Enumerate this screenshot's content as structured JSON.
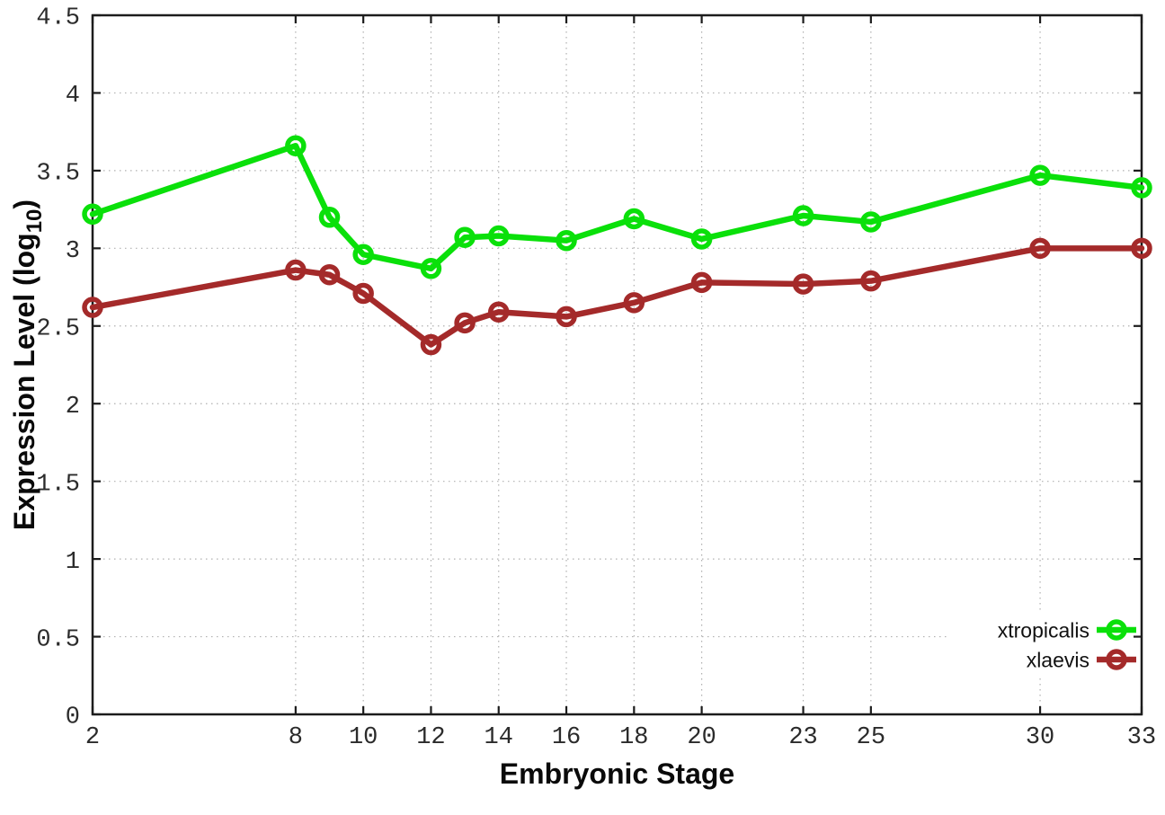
{
  "chart_data": {
    "type": "line",
    "title": "",
    "xlabel": "Embryonic Stage",
    "ylabel": "Expression Level (log10)",
    "ylabel_parts": {
      "base": "Expression Level (log",
      "sub": "10",
      "close": ")"
    },
    "xlim": [
      2,
      33
    ],
    "ylim": [
      0,
      4.5
    ],
    "grid": true,
    "grid_style": "dotted",
    "legend_position": "bottom-right",
    "marker": "open-circle",
    "xticks": [
      2,
      8,
      10,
      12,
      14,
      16,
      18,
      20,
      23,
      25,
      30,
      33
    ],
    "xtick_labels": [
      "2",
      "8",
      "10",
      "12",
      "14",
      "16",
      "18",
      "20",
      "23",
      "25",
      "30",
      "33"
    ],
    "yticks": [
      0,
      0.5,
      1,
      1.5,
      2,
      2.5,
      3,
      3.5,
      4,
      4.5
    ],
    "ytick_labels": [
      "0",
      "0.5",
      "1",
      "1.5",
      "2",
      "2.5",
      "3",
      "3.5",
      "4",
      "4.5"
    ],
    "x": [
      2,
      8,
      9,
      10,
      12,
      13,
      14,
      16,
      18,
      20,
      23,
      25,
      30,
      33
    ],
    "series": [
      {
        "name": "xtropicalis",
        "color": "#0ae00a",
        "values": [
          3.22,
          3.66,
          3.2,
          2.96,
          2.87,
          3.07,
          3.08,
          3.05,
          3.19,
          3.06,
          3.21,
          3.17,
          3.47,
          3.39
        ]
      },
      {
        "name": "xlaevis",
        "color": "#a42a2a",
        "values": [
          2.62,
          2.86,
          2.83,
          2.71,
          2.38,
          2.52,
          2.59,
          2.56,
          2.65,
          2.78,
          2.77,
          2.79,
          3.0,
          3.0
        ]
      }
    ],
    "colors": {
      "background": "#ffffff",
      "border": "#1c1c1c",
      "grid": "#b0b0b0",
      "tick_text": "#2b2b2b",
      "axis_title_text": "#0a0a0a"
    }
  }
}
